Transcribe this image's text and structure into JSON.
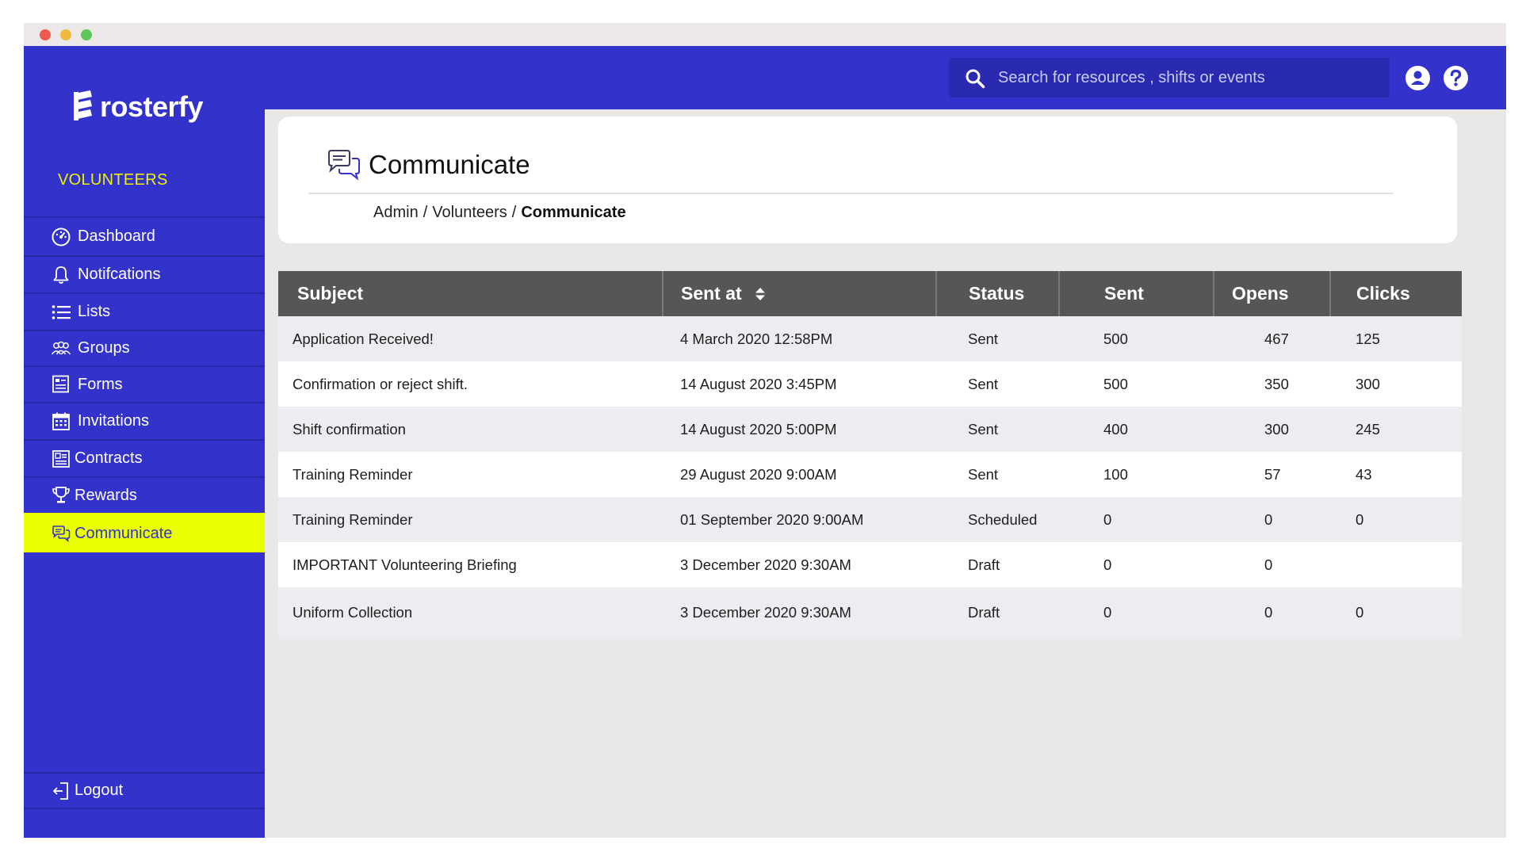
{
  "window": {
    "controls": [
      "close",
      "minimize",
      "maximize"
    ]
  },
  "brand": {
    "name": "rosterfy"
  },
  "search": {
    "placeholder": "Search for resources , shifts or events",
    "icon": "search-icon"
  },
  "topbar": {
    "icons": [
      "user-icon",
      "help-icon"
    ]
  },
  "sidebar": {
    "section_title": "VOLUNTEERS",
    "items": [
      {
        "label": "Dashboard",
        "icon": "dashboard-icon"
      },
      {
        "label": "Notifcations",
        "icon": "bell-icon"
      },
      {
        "label": "Lists",
        "icon": "list-icon"
      },
      {
        "label": "Groups",
        "icon": "groups-icon"
      },
      {
        "label": "Forms",
        "icon": "forms-icon"
      },
      {
        "label": "Invitations",
        "icon": "calendar-icon"
      },
      {
        "label": "Contracts",
        "icon": "contracts-icon"
      },
      {
        "label": "Rewards",
        "icon": "trophy-icon"
      },
      {
        "label": "Communicate",
        "icon": "chat-icon",
        "active": true
      }
    ],
    "logout": {
      "label": "Logout",
      "icon": "logout-icon"
    }
  },
  "page": {
    "title": "Communicate",
    "breadcrumb": [
      "Admin",
      "/",
      "Volunteers",
      "/",
      "Communicate"
    ]
  },
  "table": {
    "columns": [
      "Subject",
      "Sent at",
      "Status",
      "Sent",
      "Opens",
      "Clicks"
    ],
    "rows": [
      {
        "subject": "Application Received!",
        "sent_at": "4 March 2020 12:58PM",
        "status": "Sent",
        "sent": "500",
        "opens": "467",
        "clicks": "125"
      },
      {
        "subject": "Confirmation or reject shift.",
        "sent_at": "14 August 2020 3:45PM",
        "status": "Sent",
        "sent": "500",
        "opens": "350",
        "clicks": "300"
      },
      {
        "subject": "Shift confirmation",
        "sent_at": "14 August 2020 5:00PM",
        "status": "Sent",
        "sent": "400",
        "opens": "300",
        "clicks": "245"
      },
      {
        "subject": "Training Reminder",
        "sent_at": "29 August 2020 9:00AM",
        "status": "Sent",
        "sent": "100",
        "opens": "57",
        "clicks": "43"
      },
      {
        "subject": "Training Reminder",
        "sent_at": "01 September 2020 9:00AM",
        "status": "Scheduled",
        "sent": "0",
        "opens": "0",
        "clicks": "0"
      },
      {
        "subject": "IMPORTANT Volunteering Briefing",
        "sent_at": "3 December 2020 9:30AM",
        "status": "Draft",
        "sent": "0",
        "opens": "0",
        "clicks": ""
      },
      {
        "subject": "Uniform Collection",
        "sent_at": "3 December 2020 9:30AM",
        "status": "Draft",
        "sent": "0",
        "opens": "0",
        "clicks": "0"
      }
    ]
  },
  "colors": {
    "primary": "#3333cc",
    "active_nav": "#eaff00",
    "section_title": "#eef200",
    "table_header": "#565656"
  }
}
